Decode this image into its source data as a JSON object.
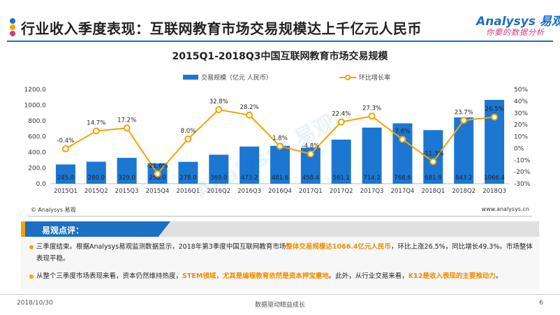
{
  "page_title": "行业收入季度表现：互联网教育市场交易规模达上千亿元人民币",
  "logo": {
    "brand": "Analysys 易观",
    "slogan": "你要的数据分析"
  },
  "watermark": "Analysys 易观",
  "source_left": "© Analysys 易观",
  "source_right": "www.analysys.cn",
  "colors": {
    "bar": "#1c77d2",
    "line": "#f5a300",
    "accent": "#1c6fc2",
    "highlight": "#f08c00"
  },
  "chart_data": {
    "type": "bar",
    "title": "2015Q1-2018Q3中国互联网教育市场交易规模",
    "categories": [
      "2015Q1",
      "2015Q2",
      "2015Q3",
      "2015Q4",
      "2016Q1",
      "2016Q2",
      "2016Q3",
      "2016Q4",
      "2017Q1",
      "2017Q2",
      "2017Q3",
      "2017Q4",
      "2018Q1",
      "2018Q2",
      "2018Q3"
    ],
    "series": [
      {
        "name": "交易规模（亿元 人民币）",
        "type": "bar",
        "axis": "left",
        "values": [
          245.0,
          280.0,
          329.0,
          258.0,
          278.0,
          369.0,
          473.2,
          481.6,
          458.4,
          561.1,
          714.2,
          768.6,
          681.9,
          843.2,
          1066.4
        ],
        "labels": [
          "245.0",
          "280.0",
          "329.0",
          "258.0",
          "278.0",
          "369.0",
          "473.2",
          "481.6",
          "458.4",
          "561.1",
          "714.2",
          "768.6",
          "681.9",
          "843.2",
          "1066.4"
        ]
      },
      {
        "name": "环比增长率",
        "type": "line",
        "axis": "right",
        "values": [
          -0.4,
          14.7,
          17.2,
          -21.6,
          8.0,
          32.8,
          28.2,
          1.8,
          -4.8,
          22.4,
          27.3,
          7.6,
          -11.3,
          23.7,
          26.5
        ],
        "labels": [
          "-0.4%",
          "14.7%",
          "17.2%",
          "-21.6%",
          "8.0%",
          "32.8%",
          "28.2%",
          "1.8%",
          "-4.8%",
          "22.4%",
          "27.3%",
          "7.6%",
          "-11.3%",
          "23.7%",
          "26.5%"
        ]
      }
    ],
    "y_left": {
      "min": 0,
      "max": 1200,
      "ticks": [
        "0.0",
        "200.0",
        "400.0",
        "600.0",
        "800.0",
        "1000.0",
        "1200.0"
      ]
    },
    "y_right": {
      "min": -30,
      "max": 50,
      "ticks": [
        "-30%",
        "-20%",
        "-10%",
        "0%",
        "10%",
        "20%",
        "30%",
        "40%",
        "50%"
      ]
    },
    "grid": false,
    "legend": "top-center"
  },
  "comment": {
    "label": "易观点评：",
    "bullet1": {
      "pre": "三季度结束。根据Analysys易观监测数据显示，2018年第3季度中国互联网教育市场",
      "hl": "整体交易规模达1066.4亿元人民币",
      "post": "，环比上涨26.5%，同比增长49.3%。市场整体表现平稳。"
    },
    "bullet2": {
      "pre": "从整个三季度市场表现来看，资本仍然维持热度，",
      "hl1": "STEM领域，尤其是编程教育依然是资本押宝重地",
      "mid": "。此外，从行业交易来看，",
      "hl2": "K12是收入表现的主要推动力",
      "post": "。"
    }
  },
  "footer": {
    "date": "2018/10/30",
    "center": "数据驱动精益成长",
    "page": "6"
  }
}
